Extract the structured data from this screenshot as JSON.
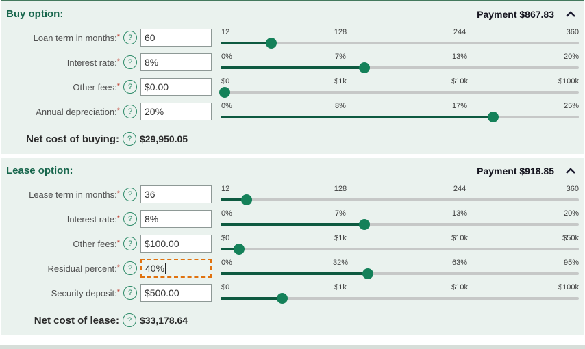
{
  "colors": {
    "section_bg": "#eaf2ee",
    "brand_green": "#17664c",
    "slider_fill": "#0e5a40",
    "slider_thumb": "#148159",
    "track_gray": "#c6c8c7",
    "focus_orange": "#e0720f"
  },
  "icons": {
    "help_glyph": "?",
    "collapse": "chevron-up-icon"
  },
  "sections": [
    {
      "id": "buy",
      "title": "Buy option:",
      "payment": "Payment $867.83",
      "fields": [
        {
          "label": "Loan term in months:",
          "required": "*",
          "value": "60",
          "ticks": [
            "12",
            "128",
            "244",
            "360"
          ],
          "thumb_pct": 14
        },
        {
          "label": "Interest rate:",
          "required": "*",
          "value": "8%",
          "ticks": [
            "0%",
            "7%",
            "13%",
            "20%"
          ],
          "thumb_pct": 40
        },
        {
          "label": "Other fees:",
          "required": "*",
          "value": "$0.00",
          "ticks": [
            "$0",
            "$1k",
            "$10k",
            "$100k"
          ],
          "thumb_pct": 1
        },
        {
          "label": "Annual depreciation:",
          "required": "*",
          "value": "20%",
          "ticks": [
            "0%",
            "8%",
            "17%",
            "25%"
          ],
          "thumb_pct": 76
        }
      ],
      "net_label": "Net cost of buying:",
      "net_value": "$29,950.05"
    },
    {
      "id": "lease",
      "title": "Lease option:",
      "payment": "Payment $918.85",
      "fields": [
        {
          "label": "Lease term in months:",
          "required": "*",
          "value": "36",
          "ticks": [
            "12",
            "128",
            "244",
            "360"
          ],
          "thumb_pct": 7
        },
        {
          "label": "Interest rate:",
          "required": "*",
          "value": "8%",
          "ticks": [
            "0%",
            "7%",
            "13%",
            "20%"
          ],
          "thumb_pct": 40
        },
        {
          "label": "Other fees:",
          "required": "*",
          "value": "$100.00",
          "ticks": [
            "$0",
            "$1k",
            "$10k",
            "$50k"
          ],
          "thumb_pct": 5
        },
        {
          "label": "Residual percent:",
          "required": "*",
          "value": "40%",
          "focused": true,
          "ticks": [
            "0%",
            "32%",
            "63%",
            "95%"
          ],
          "thumb_pct": 41
        },
        {
          "label": "Security deposit:",
          "required": "*",
          "value": "$500.00",
          "ticks": [
            "$0",
            "$1k",
            "$10k",
            "$100k"
          ],
          "thumb_pct": 17
        }
      ],
      "net_label": "Net cost of lease:",
      "net_value": "$33,178.64"
    }
  ]
}
